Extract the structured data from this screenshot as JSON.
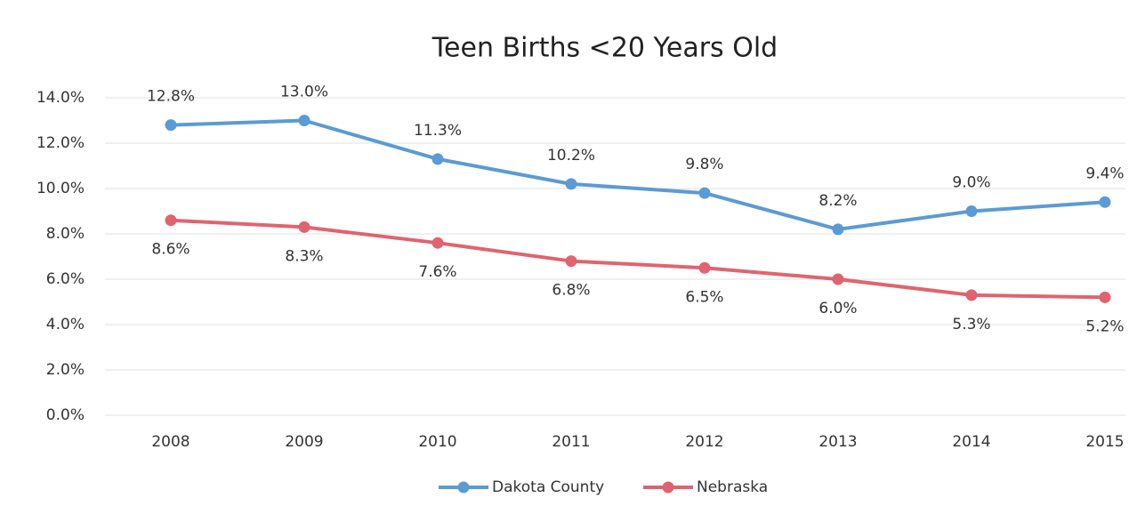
{
  "chart_data": {
    "type": "line",
    "title": "Teen Births <20 Years Old",
    "categories": [
      "2008",
      "2009",
      "2010",
      "2011",
      "2012",
      "2013",
      "2014",
      "2015"
    ],
    "series": [
      {
        "name": "Dakota County",
        "color": "#5b9bd5",
        "values": [
          12.8,
          13.0,
          11.3,
          10.2,
          9.8,
          8.2,
          9.0,
          9.4
        ],
        "value_labels": [
          "12.8%",
          "13.0%",
          "11.3%",
          "10.2%",
          "9.8%",
          "8.2%",
          "9.0%",
          "9.4%"
        ]
      },
      {
        "name": "Nebraska",
        "color": "#e0646f",
        "values": [
          8.6,
          8.3,
          7.6,
          6.8,
          6.5,
          6.0,
          5.3,
          5.2
        ],
        "value_labels": [
          "8.6%",
          "8.3%",
          "7.6%",
          "6.8%",
          "6.5%",
          "6.0%",
          "5.3%",
          "5.2%"
        ]
      }
    ],
    "ylim": [
      0,
      14
    ],
    "yticks": [
      {
        "value": 0,
        "label": "0.0%"
      },
      {
        "value": 2,
        "label": "2.0%"
      },
      {
        "value": 4,
        "label": "4.0%"
      },
      {
        "value": 6,
        "label": "6.0%"
      },
      {
        "value": 8,
        "label": "8.0%"
      },
      {
        "value": 10,
        "label": "10.0%"
      },
      {
        "value": 12,
        "label": "12.0%"
      },
      {
        "value": 14,
        "label": "14.0%"
      }
    ],
    "grid": true,
    "legend": "bottom"
  }
}
